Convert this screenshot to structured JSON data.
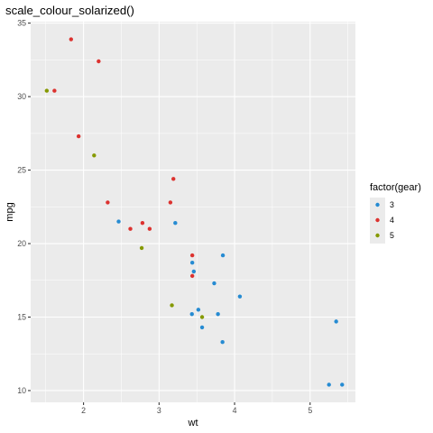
{
  "chart_data": {
    "type": "scatter",
    "title": "scale_colour_solarized()",
    "xlabel": "wt",
    "ylabel": "mpg",
    "xlim": [
      1.3,
      5.6
    ],
    "ylim": [
      9.2,
      35.1
    ],
    "x_ticks": [
      2,
      3,
      4,
      5
    ],
    "y_ticks": [
      10,
      15,
      20,
      25,
      30,
      35
    ],
    "x_tick_labels": [
      "2",
      "3",
      "4",
      "5"
    ],
    "y_tick_labels": [
      "10",
      "15",
      "20",
      "25",
      "30",
      "35"
    ],
    "grid": true,
    "legend": {
      "title": "factor(gear)",
      "position": "right"
    },
    "series": [
      {
        "name": "3",
        "color": "#268bd2",
        "points": [
          [
            2.465,
            21.5
          ],
          [
            3.215,
            21.4
          ],
          [
            3.44,
            18.7
          ],
          [
            3.46,
            18.1
          ],
          [
            3.57,
            14.3
          ],
          [
            4.07,
            16.4
          ],
          [
            3.73,
            17.3
          ],
          [
            3.78,
            15.2
          ],
          [
            5.25,
            10.4
          ],
          [
            5.424,
            10.4
          ],
          [
            5.345,
            14.7
          ],
          [
            3.52,
            15.5
          ],
          [
            3.435,
            15.2
          ],
          [
            3.84,
            13.3
          ],
          [
            3.845,
            19.2
          ]
        ]
      },
      {
        "name": "4",
        "color": "#dc322f",
        "points": [
          [
            2.62,
            21.0
          ],
          [
            2.875,
            21.0
          ],
          [
            2.32,
            22.8
          ],
          [
            3.19,
            24.4
          ],
          [
            3.15,
            22.8
          ],
          [
            3.44,
            19.2
          ],
          [
            3.44,
            17.8
          ],
          [
            2.2,
            32.4
          ],
          [
            1.615,
            30.4
          ],
          [
            1.835,
            33.9
          ],
          [
            1.935,
            27.3
          ],
          [
            2.78,
            21.4
          ]
        ]
      },
      {
        "name": "5",
        "color": "#859900",
        "points": [
          [
            2.14,
            26.0
          ],
          [
            1.513,
            30.4
          ],
          [
            3.17,
            15.8
          ],
          [
            2.77,
            19.7
          ],
          [
            3.57,
            15.0
          ]
        ]
      }
    ]
  }
}
